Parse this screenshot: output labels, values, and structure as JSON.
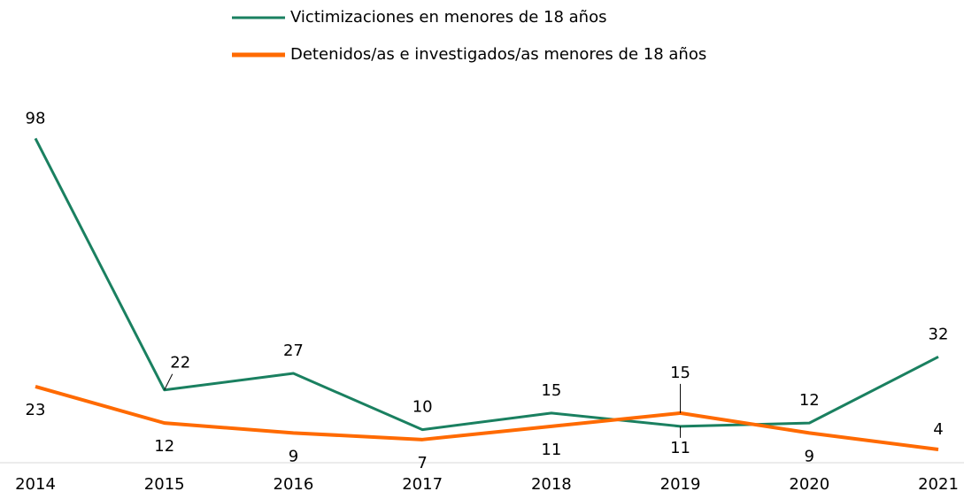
{
  "chart_data": {
    "type": "line",
    "categories": [
      "2014",
      "2015",
      "2016",
      "2017",
      "2018",
      "2019",
      "2020",
      "2021"
    ],
    "series": [
      {
        "name": "Victimizaciones en menores de 18 años",
        "color": "#1a8060",
        "values": [
          98,
          22,
          27,
          10,
          15,
          11,
          12,
          32
        ]
      },
      {
        "name": "Detenidos/as e investigados/as menores de 18 años",
        "color": "#ff6a00",
        "values": [
          23,
          12,
          9,
          7,
          11,
          15,
          9,
          4
        ]
      }
    ],
    "ylim": [
      0,
      100
    ],
    "legend": "top"
  }
}
